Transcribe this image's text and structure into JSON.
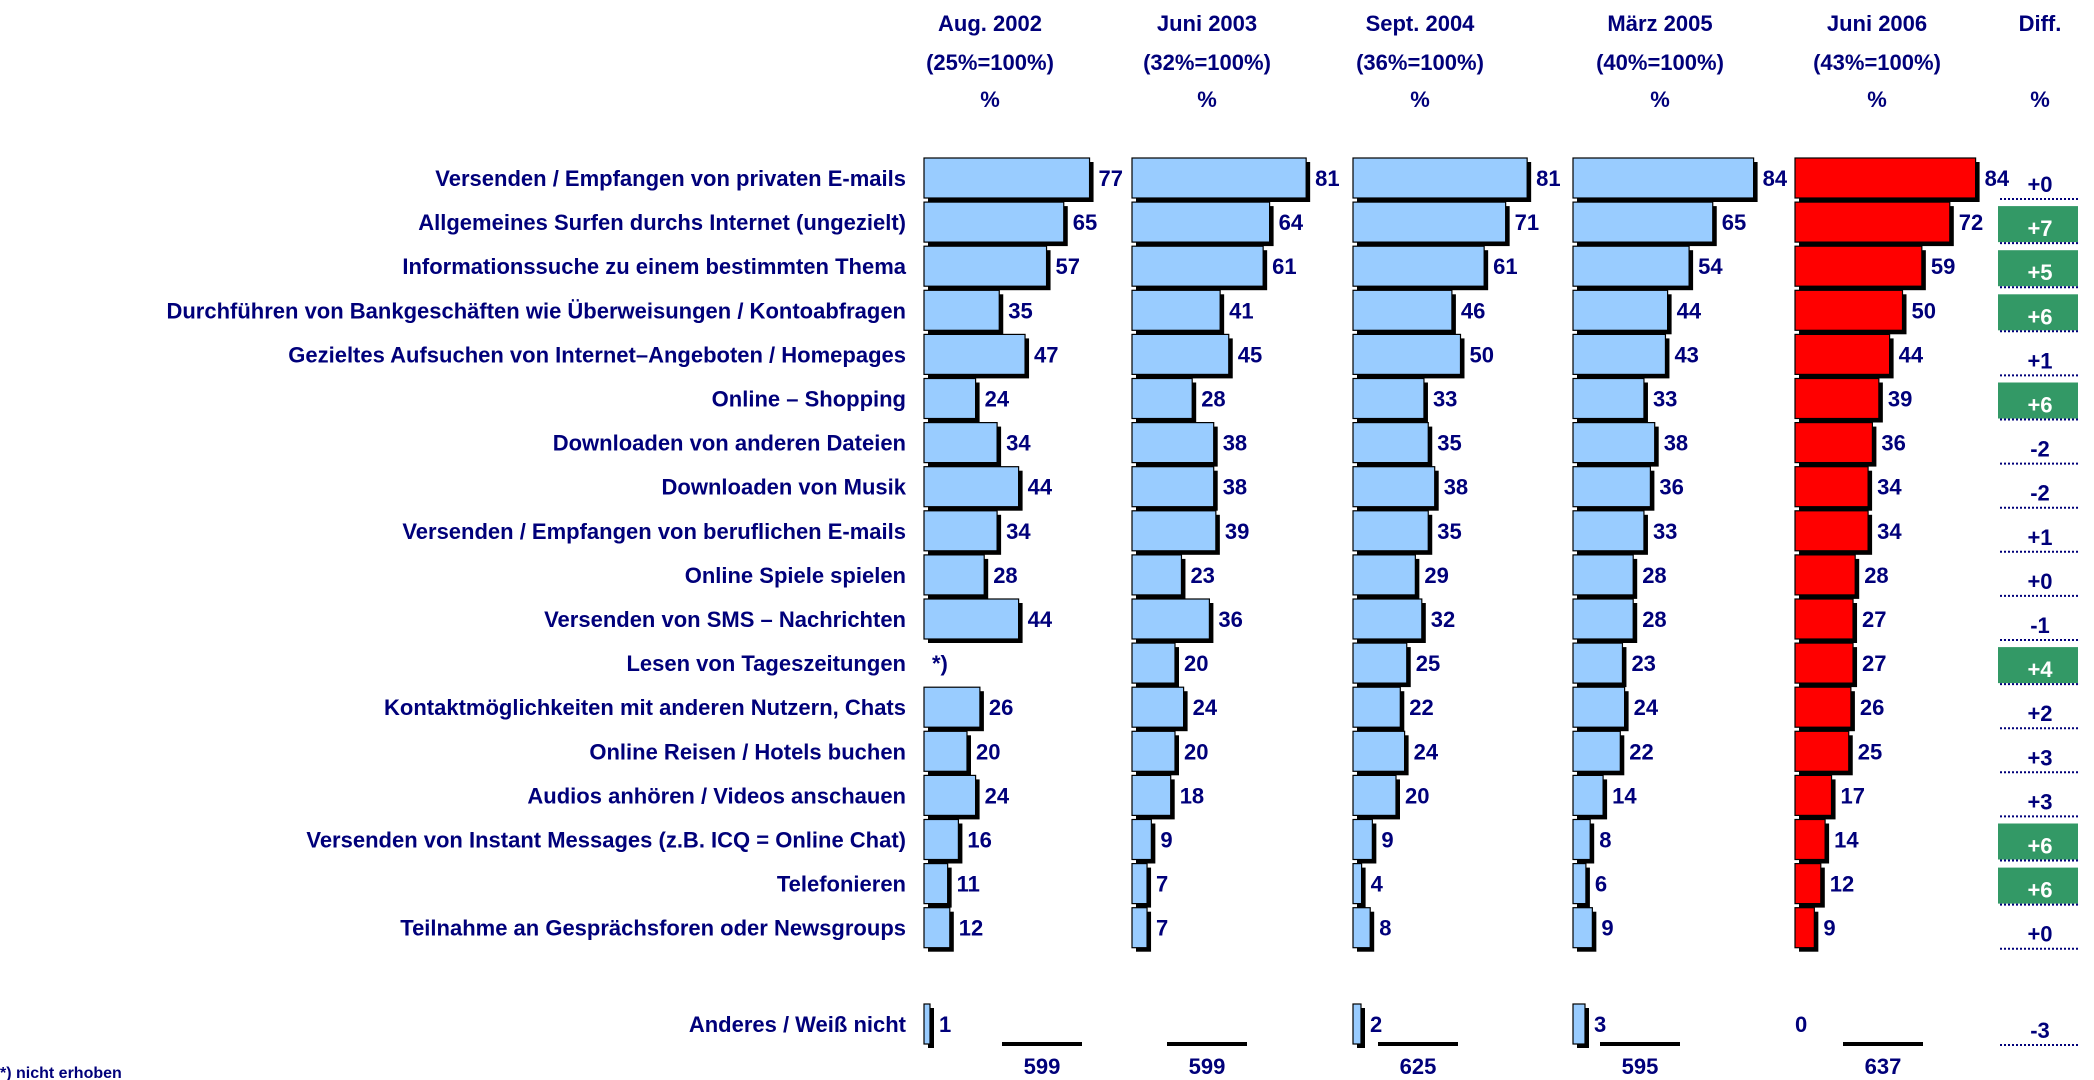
{
  "chart_data": {
    "type": "bar",
    "orientation": "horizontal",
    "columns": [
      {
        "title": "Aug. 2002",
        "base": "(25%=100%)",
        "unit": "%",
        "n": "599"
      },
      {
        "title": "Juni 2003",
        "base": "(32%=100%)",
        "unit": "%",
        "n": "599"
      },
      {
        "title": "Sept. 2004",
        "base": "(36%=100%)",
        "unit": "%",
        "n": "625"
      },
      {
        "title": "März 2005",
        "base": "(40%=100%)",
        "unit": "%",
        "n": "595"
      },
      {
        "title": "Juni 2006",
        "base": "(43%=100%)",
        "unit": "%",
        "n": "637"
      }
    ],
    "diff_header": {
      "title": "Diff.",
      "unit": "%"
    },
    "categories": [
      "Versenden / Empfangen von privaten E-mails",
      "Allgemeines Surfen durchs Internet (ungezielt)",
      "Informationssuche zu einem bestimmten Thema",
      "Durchführen von Bankgeschäften wie Überweisungen / Kontoabfragen",
      "Gezieltes Aufsuchen von Internet–Angeboten / Homepages",
      "Online – Shopping",
      "Downloaden von anderen Dateien",
      "Downloaden von Musik",
      "Versenden / Empfangen von beruflichen E-mails",
      "Online Spiele spielen",
      "Versenden von SMS – Nachrichten",
      "Lesen von Tageszeitungen",
      "Kontaktmöglichkeiten mit anderen Nutzern, Chats",
      "Online Reisen / Hotels buchen",
      "Audios anhören / Videos anschauen",
      "Versenden von Instant Messages (z.B. ICQ = Online Chat)",
      "Telefonieren",
      "Teilnahme an Gesprächsforen oder Newsgroups",
      "Anderes / Weiß nicht"
    ],
    "series": [
      {
        "name": "Aug. 2002",
        "values": [
          77,
          65,
          57,
          35,
          47,
          24,
          34,
          44,
          34,
          28,
          44,
          null,
          26,
          20,
          24,
          16,
          11,
          12,
          1
        ]
      },
      {
        "name": "Juni 2003",
        "values": [
          81,
          64,
          61,
          41,
          45,
          28,
          38,
          38,
          39,
          23,
          36,
          20,
          24,
          20,
          18,
          9,
          7,
          7,
          null
        ]
      },
      {
        "name": "Sept. 2004",
        "values": [
          81,
          71,
          61,
          46,
          50,
          33,
          35,
          38,
          35,
          29,
          32,
          25,
          22,
          24,
          20,
          9,
          4,
          8,
          2
        ]
      },
      {
        "name": "März 2005",
        "values": [
          84,
          65,
          54,
          44,
          43,
          33,
          38,
          36,
          33,
          28,
          28,
          23,
          24,
          22,
          14,
          8,
          6,
          9,
          3
        ]
      },
      {
        "name": "Juni 2006",
        "values": [
          84,
          72,
          59,
          50,
          44,
          39,
          36,
          34,
          34,
          28,
          27,
          27,
          26,
          25,
          17,
          14,
          12,
          9,
          0
        ]
      }
    ],
    "missing_marker": "*)",
    "diff": [
      "+0",
      "+7",
      "+5",
      "+6",
      "+1",
      "+6",
      "-2",
      "-2",
      "+1",
      "+0",
      "-1",
      "+4",
      "+2",
      "+3",
      "+3",
      "+6",
      "+6",
      "+0",
      "-3"
    ],
    "diff_highlight": [
      false,
      true,
      true,
      true,
      false,
      true,
      false,
      false,
      false,
      false,
      false,
      true,
      false,
      false,
      false,
      true,
      true,
      false,
      false
    ],
    "footnote": "*) nicht erhoben",
    "xlim": [
      0,
      100
    ]
  },
  "colors": {
    "bar": "#99ccff",
    "highlight_bar": "#ff0000",
    "text": "#00007a",
    "diff_highlight_bg": "#339966",
    "shadow": "#000000"
  }
}
